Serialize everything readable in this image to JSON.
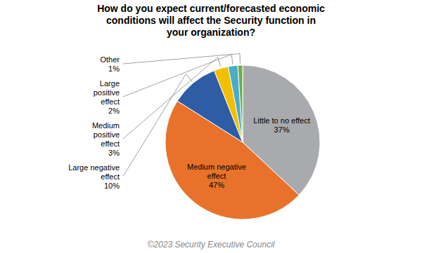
{
  "chart_data": {
    "type": "pie",
    "title": "How do you expect current/forecasted economic\nconditions will affect the Security function in\nyour organization?",
    "categories": [
      "Little to no effect",
      "Medium negative\neffect",
      "Large negative\neffect",
      "Medium\npositive\neffect",
      "Large\npositive\neffect",
      "Other"
    ],
    "values": [
      37,
      47,
      10,
      3,
      2,
      1
    ],
    "value_labels": [
      "37%",
      "47%",
      "10%",
      "3%",
      "2%",
      "1%"
    ],
    "data_labels": true,
    "colors": [
      "#A8AAAD",
      "#E8722A",
      "#2E5DA6",
      "#F2BE00",
      "#4BACC6",
      "#70AD47"
    ],
    "annotations": [
      "©2023 Security Executive Council"
    ]
  }
}
